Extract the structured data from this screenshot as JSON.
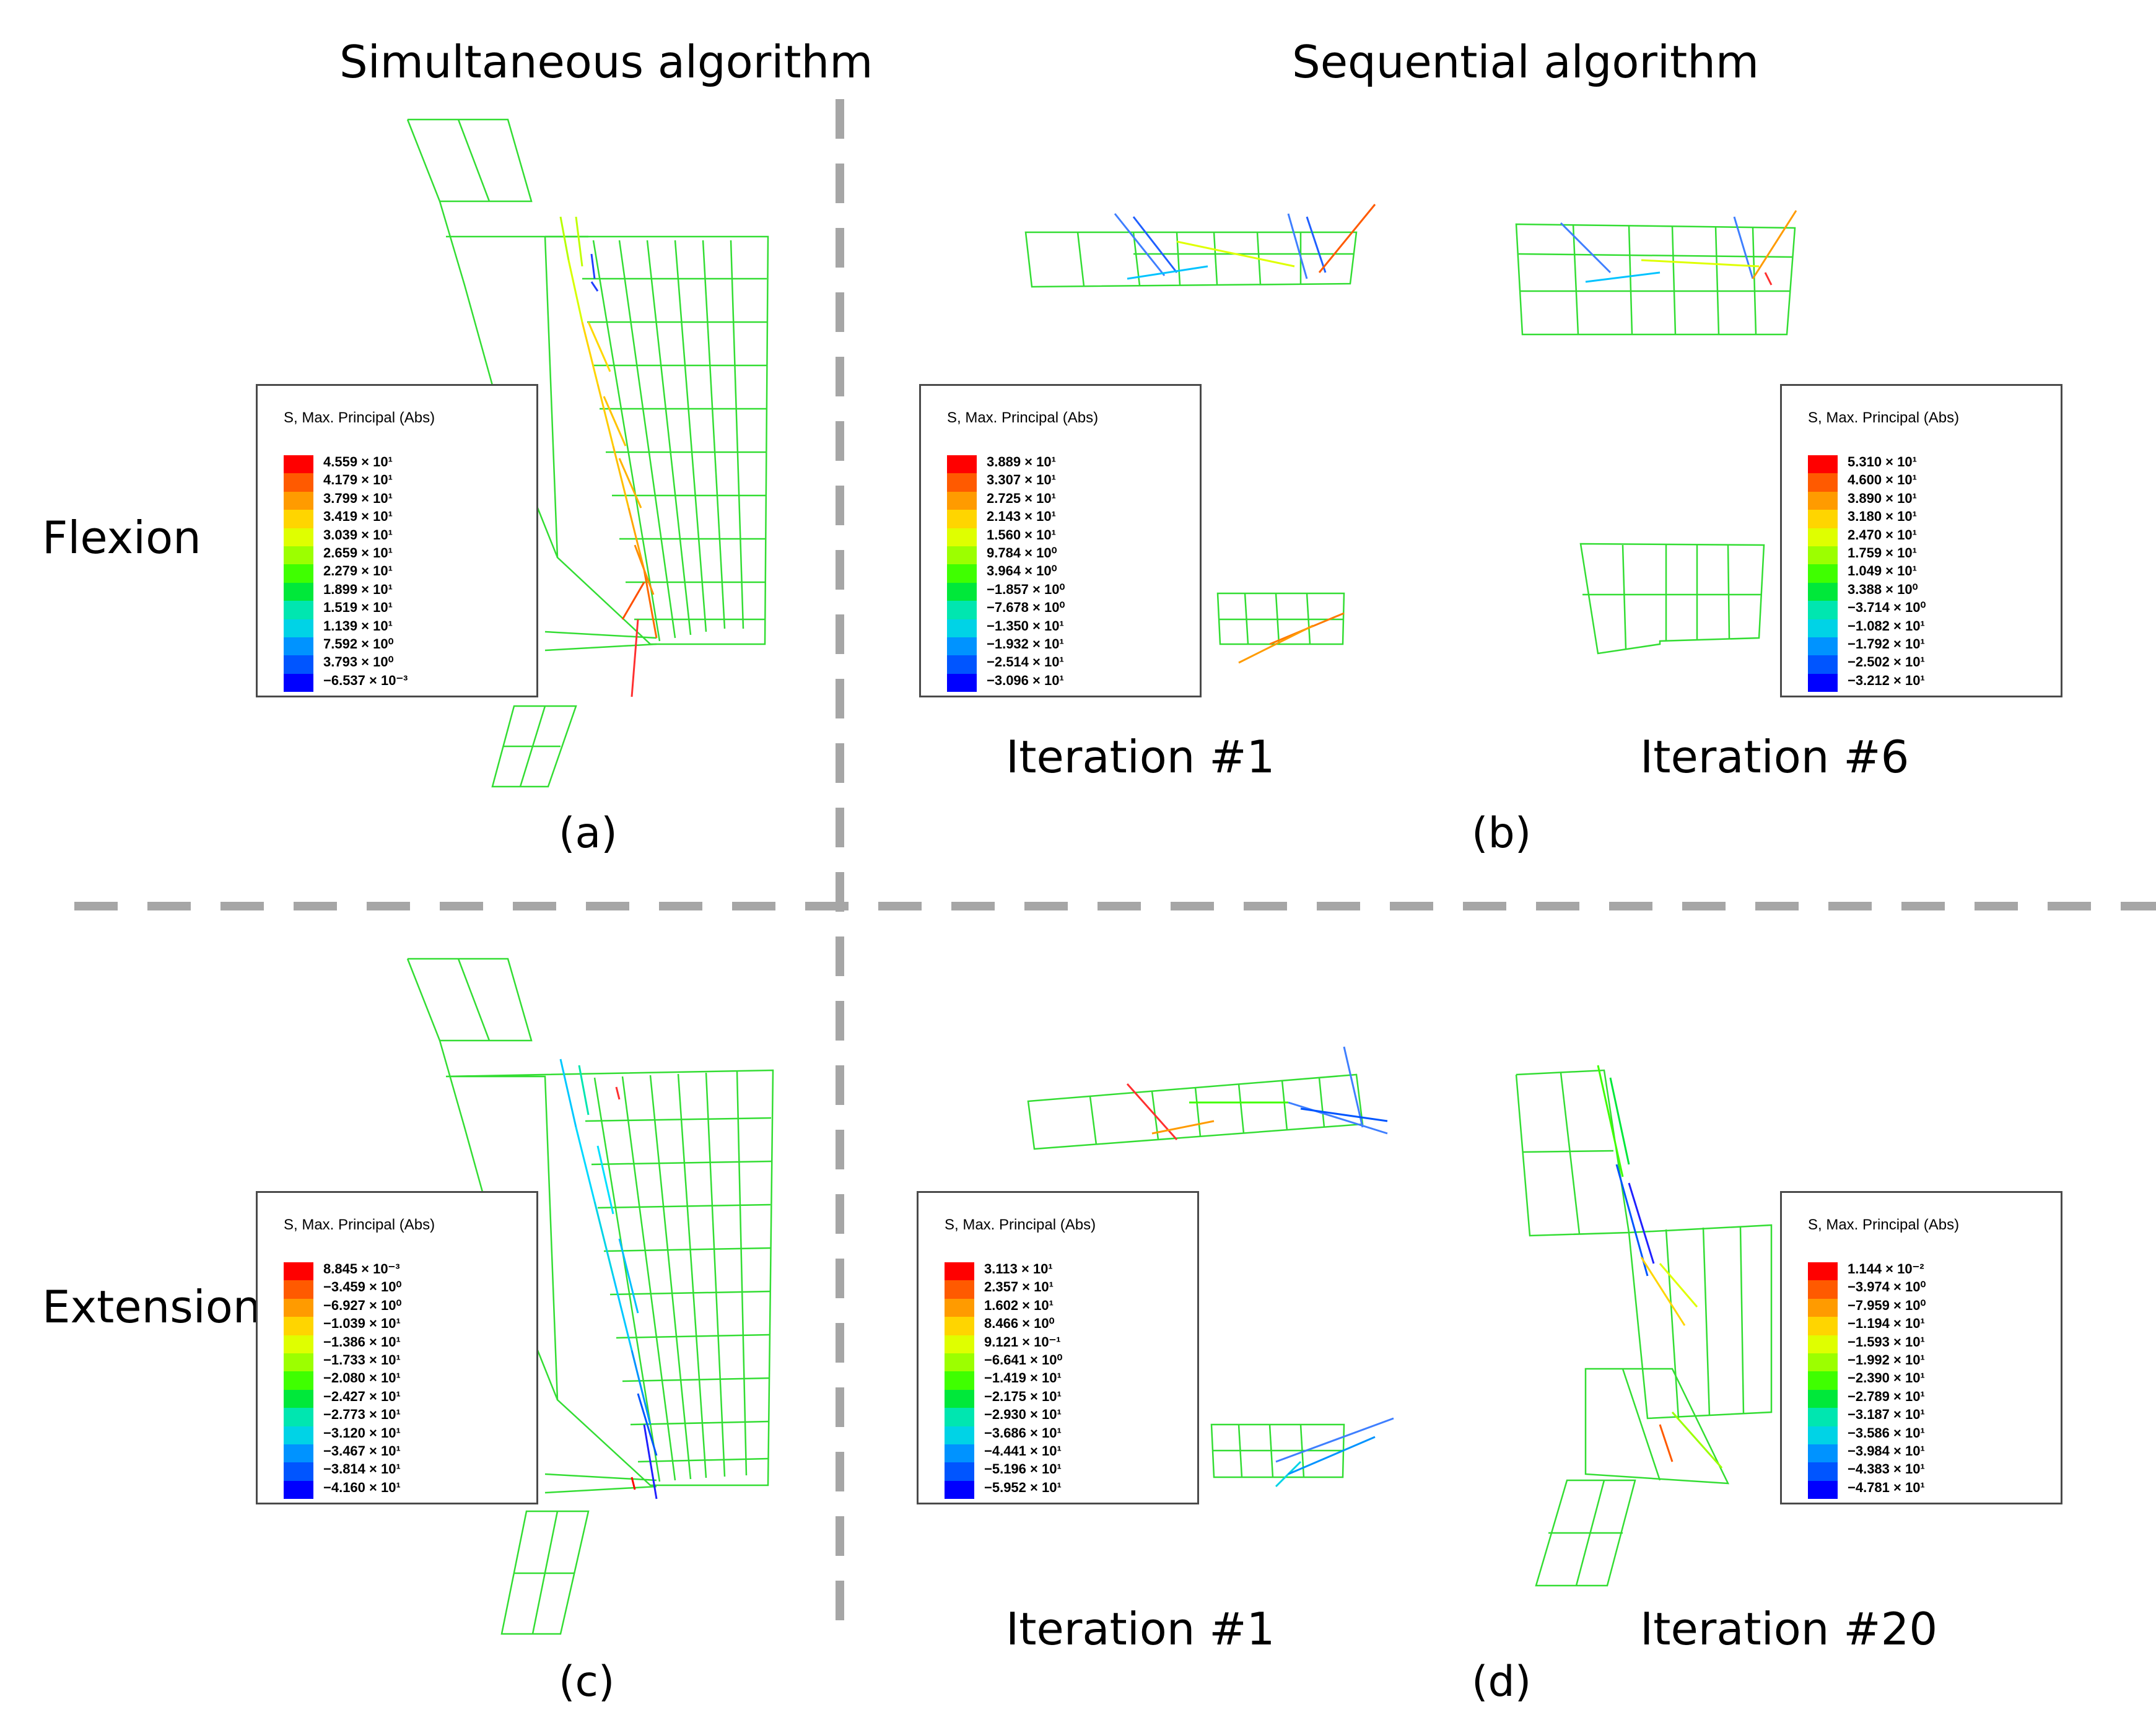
{
  "header": {
    "simultaneous_title": "Simultaneous algorithm",
    "sequential_title": "Sequential algorithm"
  },
  "rows": {
    "flexion": "Flexion",
    "extension": "Extension"
  },
  "panels": {
    "a": "(a)",
    "b": "(b)",
    "c": "(c)",
    "d": "(d)"
  },
  "iterations": {
    "b_left": "Iteration #1",
    "b_right": "Iteration #6",
    "d_left": "Iteration #1",
    "d_right": "Iteration #20"
  },
  "colors": {
    "divider": "#a6a6a6",
    "mesh": "#33dd33",
    "scale": [
      "#ff0000",
      "#ff5a00",
      "#ff9b00",
      "#ffd500",
      "#dfff00",
      "#9cff00",
      "#3fff00",
      "#00e83a",
      "#00e6b0",
      "#00d3e6",
      "#0093ff",
      "#0055ff",
      "#0000ff"
    ]
  },
  "legends": [
    {
      "id": "a",
      "title": "S, Max. Principal (Abs)",
      "values": [
        "4.559 × 10¹",
        "4.179 × 10¹",
        "3.799 × 10¹",
        "3.419 × 10¹",
        "3.039 × 10¹",
        "2.659 × 10¹",
        "2.279 × 10¹",
        "1.899 × 10¹",
        "1.519 × 10¹",
        "1.139 × 10¹",
        "7.592 × 10⁰",
        "3.793 × 10⁰",
        "−6.537 × 10⁻³"
      ]
    },
    {
      "id": "b1",
      "title": "S, Max. Principal (Abs)",
      "values": [
        "3.889 × 10¹",
        "3.307 × 10¹",
        "2.725 × 10¹",
        "2.143 × 10¹",
        "1.560 × 10¹",
        "9.784 × 10⁰",
        "3.964 × 10⁰",
        "−1.857 × 10⁰",
        "−7.678 × 10⁰",
        "−1.350 × 10¹",
        "−1.932 × 10¹",
        "−2.514 × 10¹",
        "−3.096 × 10¹"
      ]
    },
    {
      "id": "b6",
      "title": "S, Max. Principal (Abs)",
      "values": [
        "5.310 × 10¹",
        "4.600 × 10¹",
        "3.890 × 10¹",
        "3.180 × 10¹",
        "2.470 × 10¹",
        "1.759 × 10¹",
        "1.049 × 10¹",
        "3.388 × 10⁰",
        "−3.714 × 10⁰",
        "−1.082 × 10¹",
        "−1.792 × 10¹",
        "−2.502 × 10¹",
        "−3.212 × 10¹"
      ]
    },
    {
      "id": "c",
      "title": "S, Max. Principal (Abs)",
      "values": [
        "8.845 × 10⁻³",
        "−3.459 × 10⁰",
        "−6.927 × 10⁰",
        "−1.039 × 10¹",
        "−1.386 × 10¹",
        "−1.733 × 10¹",
        "−2.080 × 10¹",
        "−2.427 × 10¹",
        "−2.773 × 10¹",
        "−3.120 × 10¹",
        "−3.467 × 10¹",
        "−3.814 × 10¹",
        "−4.160 × 10¹"
      ]
    },
    {
      "id": "d1",
      "title": "S, Max. Principal (Abs)",
      "values": [
        "3.113 × 10¹",
        "2.357 × 10¹",
        "1.602 × 10¹",
        "8.466 × 10⁰",
        "9.121 × 10⁻¹",
        "−6.641 × 10⁰",
        "−1.419 × 10¹",
        "−2.175 × 10¹",
        "−2.930 × 10¹",
        "−3.686 × 10¹",
        "−4.441 × 10¹",
        "−5.196 × 10¹",
        "−5.952 × 10¹"
      ]
    },
    {
      "id": "d20",
      "title": "S, Max. Principal (Abs)",
      "values": [
        "1.144 × 10⁻²",
        "−3.974 × 10⁰",
        "−7.959 × 10⁰",
        "−1.194 × 10¹",
        "−1.593 × 10¹",
        "−1.992 × 10¹",
        "−2.390 × 10¹",
        "−2.789 × 10¹",
        "−3.187 × 10¹",
        "−3.586 × 10¹",
        "−3.984 × 10¹",
        "−4.383 × 10¹",
        "−4.781 × 10¹"
      ]
    }
  ]
}
